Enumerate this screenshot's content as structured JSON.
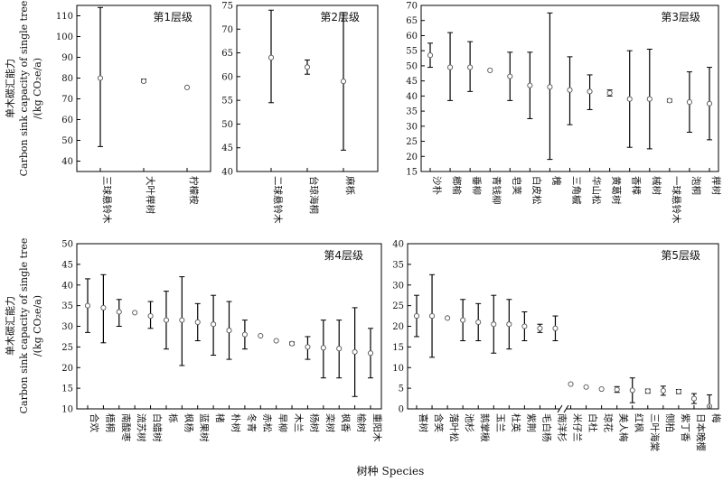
{
  "chart_data": [
    {
      "type": "scatter",
      "title": "第1层级",
      "ylim": [
        35,
        115
      ],
      "yticks": [
        40,
        50,
        60,
        70,
        80,
        90,
        100,
        110
      ],
      "categories": [
        "三球悬铃木",
        "大叶榉树",
        "柠檬桉"
      ],
      "values": [
        80,
        78.5,
        75.5
      ],
      "lower": [
        47,
        78,
        75.5
      ],
      "upper": [
        114,
        79.5,
        75.5
      ]
    },
    {
      "type": "scatter",
      "title": "第2层级",
      "ylim": [
        40,
        75
      ],
      "yticks": [
        40,
        45,
        50,
        55,
        60,
        65,
        70,
        75
      ],
      "categories": [
        "二球悬铃木",
        "台琼海桐",
        "麻栎"
      ],
      "values": [
        64,
        62,
        59
      ],
      "lower": [
        54.5,
        60.5,
        44.5
      ],
      "upper": [
        74,
        63.5,
        73.5
      ]
    },
    {
      "type": "scatter",
      "title": "第3层级",
      "ylim": [
        15,
        70
      ],
      "yticks": [
        15,
        20,
        25,
        30,
        35,
        40,
        45,
        50,
        55,
        60,
        65,
        70
      ],
      "categories": [
        "沙朴",
        "榔榆",
        "垂柳",
        "青钱柳",
        "皂荚",
        "白皮松",
        "槐",
        "三角槭",
        "华山松",
        "黄葛树",
        "香樟",
        "械树",
        "一球悬铃木",
        "泡桐",
        "榉树"
      ],
      "values": [
        53.5,
        49.5,
        49.5,
        48.5,
        46.5,
        43.5,
        43,
        42,
        41.5,
        41,
        39,
        39,
        38.5,
        38,
        37.5
      ],
      "lower": [
        49.5,
        38.5,
        41.5,
        48.5,
        38.5,
        32.5,
        19,
        30.5,
        35.5,
        40,
        23,
        22.5,
        38,
        28,
        25.5
      ],
      "upper": [
        57.5,
        61,
        58,
        48.5,
        54.5,
        54.5,
        67.5,
        53,
        47,
        42,
        55,
        55.5,
        39,
        48,
        49.5
      ]
    },
    {
      "type": "scatter",
      "title": "第4层级",
      "ylim": [
        10,
        50
      ],
      "yticks": [
        10,
        15,
        20,
        25,
        30,
        35,
        40,
        45,
        50
      ],
      "categories": [
        "合欢",
        "梧桐",
        "南酸枣",
        "流苏树",
        "白蜡树",
        "栎",
        "枫杨",
        "蓝果树",
        "楮",
        "朴树",
        "冬青",
        "赤松",
        "旱柳",
        "木兰",
        "杨树",
        "栾树",
        "枫香",
        "榆树",
        "重阳木"
      ],
      "values": [
        35,
        34.5,
        33.5,
        33.3,
        32.5,
        31.5,
        31.5,
        31,
        30.5,
        29,
        28,
        27.7,
        26.5,
        25.8,
        25,
        24.8,
        24.6,
        23.8,
        23.5
      ],
      "lower": [
        28.5,
        26,
        30,
        33.3,
        29.5,
        24.5,
        20.5,
        26.5,
        23,
        22,
        24.5,
        27.7,
        26.5,
        25.5,
        22,
        17.5,
        17.5,
        13,
        17.5
      ],
      "upper": [
        41.5,
        42.5,
        36.5,
        33.3,
        36,
        38.5,
        42,
        35.5,
        37.5,
        36,
        31.5,
        27.7,
        26.5,
        26.2,
        27.5,
        31.5,
        31.5,
        34.5,
        29.5
      ]
    },
    {
      "type": "scatter",
      "title": "第5层级",
      "ylim": [
        0,
        40
      ],
      "yticks": [
        0,
        5,
        10,
        15,
        20,
        25,
        30,
        35,
        40
      ],
      "categories": [
        "喜树",
        "含笑",
        "落叶松",
        "池杉",
        "鹅掌楸",
        "玉兰",
        "杜英",
        "紫荆",
        "毛白杨",
        "南洋杉",
        "米仔兰",
        "白杜",
        "琼花",
        "美人梅",
        "红枫",
        "三叶海棠",
        "侧柏",
        "紫丁香",
        "日本晚樱",
        "梅"
      ],
      "values": [
        22.5,
        22.5,
        22,
        21.5,
        21,
        20.5,
        20.5,
        20,
        19.5,
        19.5,
        6,
        5.3,
        4.8,
        4.7,
        4.5,
        4.3,
        4.4,
        4.2,
        2.5,
        0.6
      ],
      "lower": [
        17.5,
        12.5,
        22,
        16.5,
        16.5,
        13.5,
        14.5,
        16.5,
        18.5,
        16.5,
        6,
        5.3,
        4.8,
        4,
        1.5,
        3.8,
        3.3,
        3.7,
        1.3,
        -2
      ],
      "upper": [
        27.5,
        32.5,
        22,
        26.5,
        25.5,
        27.5,
        26.5,
        23.5,
        20.5,
        22.5,
        6,
        5.3,
        4.8,
        5.4,
        7.5,
        4.8,
        5.5,
        4.7,
        3.7,
        3.4
      ]
    }
  ],
  "labels": {
    "ylabel_cn": "单木碳汇能力",
    "ylabel_en": "Carbon sink capacity of single tree",
    "ylabel_unit": "/(kg CO₂e/a)",
    "xlabel": "树种 Species"
  }
}
